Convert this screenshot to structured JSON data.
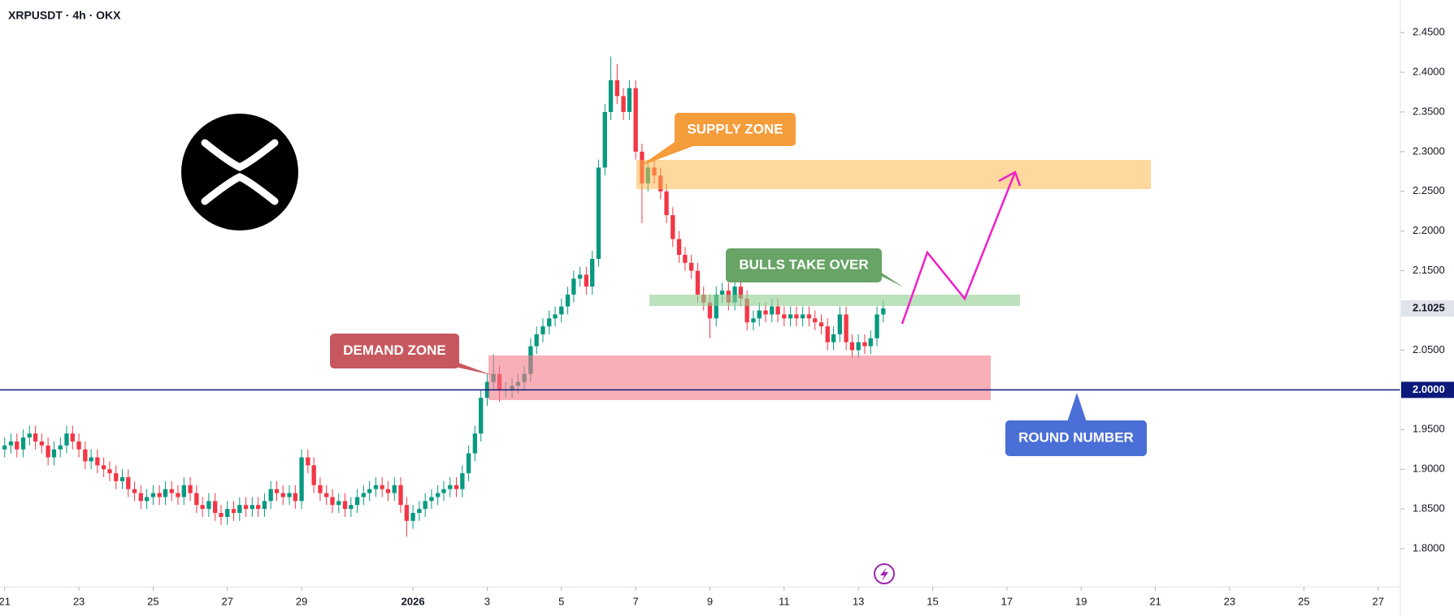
{
  "chart_data": {
    "type": "candlestick",
    "title": "XRPUSDT · 4h · OKX",
    "x": [
      0,
      0.17,
      0.33,
      0.5,
      0.67,
      0.83,
      1,
      1.17,
      1.33,
      1.5,
      1.67,
      1.83,
      2,
      2.17,
      2.33,
      2.5,
      2.67,
      2.83,
      3,
      3.17,
      3.33,
      3.5,
      3.67,
      3.83,
      4,
      4.17,
      4.33,
      4.5,
      4.67,
      4.83,
      5,
      5.17,
      5.33,
      5.5,
      5.67,
      5.83,
      6,
      6.17,
      6.33,
      6.5,
      6.67,
      6.83,
      7,
      7.17,
      7.33,
      7.5,
      7.67,
      7.83,
      8,
      8.17,
      8.33,
      8.5,
      8.67,
      8.83,
      9,
      9.17,
      9.33,
      9.5,
      9.67,
      9.83,
      10,
      10.17,
      10.33,
      10.5,
      10.67,
      10.83,
      11,
      11.17,
      11.33,
      11.5,
      11.67,
      11.83,
      12,
      12.17,
      12.33,
      12.5,
      12.67,
      12.83,
      13,
      13.17,
      13.33,
      13.5,
      13.67,
      13.83,
      14,
      14.17,
      14.33,
      14.5,
      14.67,
      14.83,
      15,
      15.17,
      15.33,
      15.5,
      15.67,
      15.83,
      16,
      16.17,
      16.33,
      16.5,
      16.67,
      16.83,
      17,
      17.17,
      17.33,
      17.5,
      17.67,
      17.83,
      18,
      18.17,
      18.33,
      18.5,
      18.67,
      18.83,
      19,
      19.17,
      19.33,
      19.5,
      19.67,
      19.83,
      20,
      20.17,
      20.33,
      20.5,
      20.67,
      20.83,
      21,
      21.17,
      21.33,
      21.5,
      21.67,
      21.83,
      22,
      22.17,
      22.33,
      22.5,
      22.67,
      22.83,
      23,
      23.17,
      23.33,
      23.5,
      23.67
    ],
    "open": [
      1.925,
      1.93,
      1.935,
      1.925,
      1.94,
      1.945,
      1.935,
      1.93,
      1.915,
      1.925,
      1.93,
      1.945,
      1.935,
      1.925,
      1.91,
      1.915,
      1.905,
      1.9,
      1.895,
      1.885,
      1.89,
      1.875,
      1.87,
      1.86,
      1.865,
      1.87,
      1.865,
      1.875,
      1.87,
      1.865,
      1.88,
      1.87,
      1.855,
      1.85,
      1.86,
      1.845,
      1.84,
      1.85,
      1.845,
      1.855,
      1.85,
      1.855,
      1.85,
      1.86,
      1.875,
      1.87,
      1.865,
      1.87,
      1.86,
      1.915,
      1.905,
      1.88,
      1.87,
      1.865,
      1.855,
      1.86,
      1.85,
      1.855,
      1.865,
      1.87,
      1.875,
      1.88,
      1.875,
      1.87,
      1.88,
      1.855,
      1.835,
      1.845,
      1.85,
      1.86,
      1.865,
      1.87,
      1.875,
      1.88,
      1.875,
      1.895,
      1.92,
      1.945,
      1.99,
      2.01,
      2.02,
      2.0,
      2.0,
      2.005,
      2.01,
      2.02,
      2.055,
      2.07,
      2.08,
      2.09,
      2.095,
      2.105,
      2.12,
      2.14,
      2.145,
      2.13,
      2.165,
      2.28,
      2.35,
      2.39,
      2.37,
      2.35,
      2.38,
      2.3,
      2.26,
      2.28,
      2.27,
      2.25,
      2.22,
      2.19,
      2.17,
      2.16,
      2.15,
      2.12,
      2.11,
      2.09,
      2.12,
      2.125,
      2.11,
      2.13,
      2.115,
      2.085,
      2.09,
      2.1,
      2.095,
      2.105,
      2.095,
      2.09,
      2.095,
      2.09,
      2.095,
      2.09,
      2.085,
      2.08,
      2.06,
      2.07,
      2.095,
      2.06,
      2.05,
      2.06,
      2.055,
      2.065,
      2.095
    ],
    "high": [
      1.94,
      1.945,
      1.945,
      1.95,
      1.955,
      1.955,
      1.945,
      1.94,
      1.935,
      1.94,
      1.955,
      1.955,
      1.945,
      1.935,
      1.925,
      1.925,
      1.915,
      1.91,
      1.905,
      1.9,
      1.9,
      1.885,
      1.88,
      1.875,
      1.88,
      1.88,
      1.885,
      1.885,
      1.88,
      1.89,
      1.89,
      1.88,
      1.865,
      1.87,
      1.87,
      1.855,
      1.86,
      1.86,
      1.865,
      1.865,
      1.865,
      1.865,
      1.87,
      1.885,
      1.885,
      1.88,
      1.88,
      1.88,
      1.925,
      1.925,
      1.915,
      1.89,
      1.88,
      1.875,
      1.87,
      1.87,
      1.865,
      1.875,
      1.88,
      1.885,
      1.89,
      1.89,
      1.885,
      1.89,
      1.89,
      1.865,
      1.855,
      1.86,
      1.87,
      1.875,
      1.88,
      1.885,
      1.89,
      1.89,
      1.905,
      1.93,
      1.955,
      2.0,
      2.02,
      2.045,
      2.03,
      2.01,
      2.015,
      2.02,
      2.03,
      2.065,
      2.08,
      2.09,
      2.1,
      2.105,
      2.115,
      2.13,
      2.15,
      2.155,
      2.155,
      2.175,
      2.29,
      2.36,
      2.42,
      2.41,
      2.38,
      2.39,
      2.39,
      2.31,
      2.29,
      2.29,
      2.28,
      2.26,
      2.23,
      2.2,
      2.18,
      2.17,
      2.16,
      2.13,
      2.12,
      2.13,
      2.135,
      2.135,
      2.14,
      2.14,
      2.125,
      2.1,
      2.11,
      2.11,
      2.115,
      2.115,
      2.105,
      2.105,
      2.105,
      2.105,
      2.105,
      2.1,
      2.095,
      2.09,
      2.08,
      2.105,
      2.105,
      2.07,
      2.07,
      2.07,
      2.075,
      2.105,
      2.1125
    ],
    "low": [
      1.915,
      1.92,
      1.915,
      1.915,
      1.93,
      1.925,
      1.92,
      1.905,
      1.905,
      1.915,
      1.92,
      1.925,
      1.915,
      1.9,
      1.9,
      1.895,
      1.89,
      1.885,
      1.875,
      1.875,
      1.865,
      1.86,
      1.85,
      1.85,
      1.855,
      1.855,
      1.855,
      1.86,
      1.855,
      1.855,
      1.86,
      1.845,
      1.84,
      1.84,
      1.835,
      1.83,
      1.83,
      1.835,
      1.835,
      1.84,
      1.84,
      1.84,
      1.84,
      1.85,
      1.86,
      1.855,
      1.855,
      1.85,
      1.85,
      1.895,
      1.87,
      1.86,
      1.855,
      1.845,
      1.845,
      1.84,
      1.84,
      1.845,
      1.855,
      1.86,
      1.865,
      1.865,
      1.86,
      1.86,
      1.845,
      1.815,
      1.825,
      1.835,
      1.84,
      1.85,
      1.855,
      1.86,
      1.865,
      1.865,
      1.865,
      1.885,
      1.91,
      1.935,
      1.98,
      2.0,
      1.985,
      1.99,
      1.99,
      1.995,
      2.0,
      2.01,
      2.045,
      2.06,
      2.07,
      2.08,
      2.085,
      2.095,
      2.11,
      2.13,
      2.12,
      2.12,
      2.155,
      2.27,
      2.34,
      2.36,
      2.34,
      2.34,
      2.29,
      2.21,
      2.25,
      2.26,
      2.24,
      2.21,
      2.18,
      2.16,
      2.15,
      2.14,
      2.11,
      2.1,
      2.065,
      2.08,
      2.11,
      2.1,
      2.1,
      2.105,
      2.075,
      2.075,
      2.08,
      2.085,
      2.085,
      2.085,
      2.08,
      2.08,
      2.08,
      2.08,
      2.08,
      2.075,
      2.07,
      2.05,
      2.05,
      2.06,
      2.05,
      2.04,
      2.04,
      2.045,
      2.045,
      2.055,
      2.085
    ],
    "close": [
      1.93,
      1.935,
      1.925,
      1.94,
      1.945,
      1.935,
      1.93,
      1.915,
      1.925,
      1.93,
      1.945,
      1.935,
      1.925,
      1.91,
      1.915,
      1.905,
      1.9,
      1.895,
      1.885,
      1.89,
      1.875,
      1.87,
      1.86,
      1.865,
      1.87,
      1.865,
      1.875,
      1.87,
      1.865,
      1.88,
      1.87,
      1.855,
      1.85,
      1.86,
      1.845,
      1.84,
      1.85,
      1.845,
      1.855,
      1.85,
      1.855,
      1.85,
      1.86,
      1.875,
      1.87,
      1.865,
      1.87,
      1.86,
      1.915,
      1.905,
      1.88,
      1.87,
      1.865,
      1.855,
      1.86,
      1.85,
      1.855,
      1.865,
      1.87,
      1.875,
      1.88,
      1.875,
      1.87,
      1.88,
      1.855,
      1.835,
      1.845,
      1.85,
      1.86,
      1.865,
      1.87,
      1.875,
      1.88,
      1.875,
      1.895,
      1.92,
      1.945,
      1.99,
      2.01,
      2.02,
      2.0,
      2.0,
      2.005,
      2.01,
      2.02,
      2.055,
      2.07,
      2.08,
      2.09,
      2.095,
      2.105,
      2.12,
      2.14,
      2.145,
      2.13,
      2.165,
      2.28,
      2.35,
      2.39,
      2.37,
      2.35,
      2.38,
      2.3,
      2.26,
      2.28,
      2.27,
      2.25,
      2.22,
      2.19,
      2.17,
      2.16,
      2.15,
      2.12,
      2.11,
      2.09,
      2.12,
      2.125,
      2.11,
      2.13,
      2.115,
      2.085,
      2.09,
      2.1,
      2.095,
      2.105,
      2.095,
      2.09,
      2.095,
      2.09,
      2.095,
      2.09,
      2.085,
      2.08,
      2.06,
      2.07,
      2.095,
      2.06,
      2.05,
      2.06,
      2.055,
      2.065,
      2.095,
      2.1025
    ],
    "up_color": "#089981",
    "down_color": "#f23645",
    "xlim": [
      -0.125,
      37.6
    ],
    "xticks": [
      {
        "value": 0,
        "label": "21"
      },
      {
        "value": 2,
        "label": "23"
      },
      {
        "value": 4,
        "label": "25"
      },
      {
        "value": 6,
        "label": "27"
      },
      {
        "value": 8,
        "label": "29"
      },
      {
        "value": 11,
        "label": "2026"
      },
      {
        "value": 13,
        "label": "3"
      },
      {
        "value": 15,
        "label": "5"
      },
      {
        "value": 17,
        "label": "7"
      },
      {
        "value": 19,
        "label": "9"
      },
      {
        "value": 21,
        "label": "11"
      },
      {
        "value": 23,
        "label": "13"
      },
      {
        "value": 25,
        "label": "15"
      },
      {
        "value": 27,
        "label": "17"
      },
      {
        "value": 29,
        "label": "19"
      },
      {
        "value": 31,
        "label": "21"
      },
      {
        "value": 33,
        "label": "23"
      },
      {
        "value": 35,
        "label": "25"
      },
      {
        "value": 37,
        "label": "27"
      }
    ],
    "ylim": [
      1.752,
      2.491
    ],
    "yticks": [
      {
        "value": 1.8,
        "label": "1.8000"
      },
      {
        "value": 1.85,
        "label": "1.8500"
      },
      {
        "value": 1.9,
        "label": "1.9000"
      },
      {
        "value": 1.95,
        "label": "1.9500"
      },
      {
        "value": 2.05,
        "label": "2.0500"
      },
      {
        "value": 2.15,
        "label": "2.1500"
      },
      {
        "value": 2.2,
        "label": "2.2000"
      },
      {
        "value": 2.25,
        "label": "2.2500"
      },
      {
        "value": 2.3,
        "label": "2.3000"
      },
      {
        "value": 2.35,
        "label": "2.3500"
      },
      {
        "value": 2.4,
        "label": "2.4000"
      },
      {
        "value": 2.45,
        "label": "2.4500"
      }
    ],
    "last_price": {
      "value": 2.1025,
      "label": "2.1025"
    },
    "round_number": {
      "value": 2,
      "label": "2.0000"
    },
    "annotations": [
      "SUPPLY ZONE",
      "BULLS TAKE OVER",
      "DEMAND ZONE",
      "ROUND NUMBER"
    ]
  }
}
